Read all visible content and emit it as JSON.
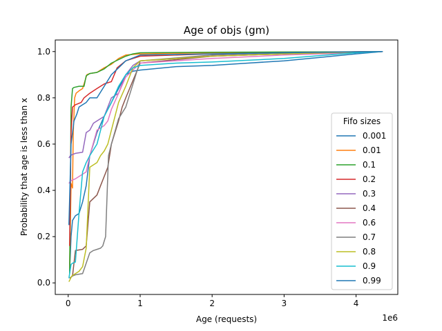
{
  "chart_data": {
    "type": "line",
    "title": "Age of objs (gm)",
    "xlabel": "Age (requests)",
    "ylabel": "Probability that age is less than x",
    "x_offset_label": "1e6",
    "xlim": [
      -180000,
      4580000
    ],
    "ylim": [
      -0.05,
      1.05
    ],
    "x_ticks": [
      0,
      1000000,
      2000000,
      3000000,
      4000000
    ],
    "x_tick_labels": [
      "0",
      "1",
      "2",
      "3",
      "4"
    ],
    "y_ticks": [
      0.0,
      0.2,
      0.4,
      0.6,
      0.8,
      1.0
    ],
    "y_tick_labels": [
      "0.0",
      "0.2",
      "0.4",
      "0.6",
      "0.8",
      "1.0"
    ],
    "grid": false,
    "legend": {
      "title": "Fifo sizes",
      "placement": "lower-right"
    },
    "series": [
      {
        "name": "0.001",
        "color": "#1f77b4",
        "x": [
          20000,
          40000,
          60000,
          100000,
          150000,
          200000,
          250000,
          300000,
          400000,
          500000,
          550000,
          600000,
          700000,
          800000,
          900000,
          1000000,
          1500000,
          2000000,
          2500000,
          3000000,
          3500000,
          4000000,
          4370000
        ],
        "y": [
          0.05,
          0.2,
          0.27,
          0.29,
          0.3,
          0.35,
          0.42,
          0.55,
          0.65,
          0.72,
          0.75,
          0.78,
          0.84,
          0.9,
          0.915,
          0.92,
          0.935,
          0.94,
          0.95,
          0.96,
          0.975,
          0.99,
          1.0
        ]
      },
      {
        "name": "0.01",
        "color": "#ff7f0e",
        "x": [
          20000,
          40000,
          60000,
          70000,
          90000,
          110000,
          150000,
          200000,
          260000,
          300000,
          400000,
          500000,
          600000,
          700000,
          800000,
          1000000,
          2000000,
          3000000,
          4000000,
          4370000
        ],
        "y": [
          0.06,
          0.43,
          0.41,
          0.65,
          0.8,
          0.82,
          0.83,
          0.84,
          0.9,
          0.905,
          0.91,
          0.93,
          0.945,
          0.97,
          0.985,
          0.99,
          0.995,
          0.997,
          0.999,
          1.0
        ]
      },
      {
        "name": "0.1",
        "color": "#2ca02c",
        "x": [
          20000,
          40000,
          60000,
          80000,
          150000,
          220000,
          250000,
          300000,
          400000,
          500000,
          600000,
          700000,
          800000,
          900000,
          1000000,
          2000000,
          3000000,
          4000000,
          4370000
        ],
        "y": [
          0.04,
          0.76,
          0.84,
          0.845,
          0.85,
          0.85,
          0.895,
          0.905,
          0.91,
          0.925,
          0.95,
          0.965,
          0.98,
          0.99,
          0.995,
          0.997,
          0.998,
          0.999,
          1.0
        ]
      },
      {
        "name": "0.2",
        "color": "#d62728",
        "x": [
          20000,
          40000,
          60000,
          100000,
          180000,
          220000,
          300000,
          400000,
          500000,
          600000,
          680000,
          800000,
          900000,
          1000000,
          2000000,
          3000000,
          4000000,
          4370000
        ],
        "y": [
          0.16,
          0.65,
          0.76,
          0.77,
          0.78,
          0.8,
          0.82,
          0.84,
          0.86,
          0.87,
          0.93,
          0.96,
          0.97,
          0.98,
          0.99,
          0.995,
          0.999,
          1.0
        ]
      },
      {
        "name": "0.3",
        "color": "#9467bd",
        "x": [
          10000,
          30000,
          60000,
          100000,
          200000,
          250000,
          300000,
          350000,
          400000,
          500000,
          550000,
          600000,
          700000,
          800000,
          900000,
          1000000,
          2000000,
          3000000,
          4000000,
          4370000
        ],
        "y": [
          0.54,
          0.55,
          0.555,
          0.56,
          0.565,
          0.65,
          0.66,
          0.69,
          0.7,
          0.72,
          0.76,
          0.8,
          0.82,
          0.9,
          0.94,
          0.96,
          0.98,
          0.99,
          0.998,
          1.0
        ]
      },
      {
        "name": "0.4",
        "color": "#8c564b",
        "x": [
          20000,
          60000,
          100000,
          200000,
          250000,
          300000,
          400000,
          450000,
          500000,
          550000,
          600000,
          700000,
          750000,
          800000,
          1000000,
          2000000,
          3000000,
          4000000,
          4370000
        ],
        "y": [
          0.02,
          0.03,
          0.14,
          0.145,
          0.16,
          0.35,
          0.38,
          0.42,
          0.46,
          0.5,
          0.6,
          0.7,
          0.76,
          0.8,
          0.95,
          0.98,
          0.99,
          0.998,
          1.0
        ]
      },
      {
        "name": "0.6",
        "color": "#e377c2",
        "x": [
          10000,
          30000,
          60000,
          100000,
          200000,
          250000,
          300000,
          400000,
          500000,
          550000,
          600000,
          700000,
          800000,
          900000,
          1000000,
          2000000,
          3000000,
          4000000,
          4370000
        ],
        "y": [
          0.43,
          0.44,
          0.445,
          0.45,
          0.47,
          0.48,
          0.55,
          0.66,
          0.68,
          0.7,
          0.75,
          0.82,
          0.89,
          0.92,
          0.95,
          0.97,
          0.985,
          0.995,
          1.0
        ]
      },
      {
        "name": "0.7",
        "color": "#7f7f7f",
        "x": [
          20000,
          60000,
          100000,
          200000,
          300000,
          350000,
          400000,
          450000,
          480000,
          520000,
          560000,
          600000,
          700000,
          800000,
          1000000,
          2000000,
          3000000,
          4000000,
          4370000
        ],
        "y": [
          0.02,
          0.03,
          0.035,
          0.04,
          0.13,
          0.14,
          0.145,
          0.15,
          0.16,
          0.2,
          0.55,
          0.6,
          0.71,
          0.76,
          0.96,
          0.985,
          0.995,
          0.999,
          1.0
        ]
      },
      {
        "name": "0.8",
        "color": "#bcbd22",
        "x": [
          10000,
          50000,
          100000,
          150000,
          200000,
          250000,
          300000,
          400000,
          450000,
          500000,
          550000,
          600000,
          700000,
          800000,
          900000,
          1000000,
          2000000,
          3000000,
          4000000,
          4370000
        ],
        "y": [
          0.005,
          0.03,
          0.04,
          0.05,
          0.07,
          0.15,
          0.5,
          0.52,
          0.55,
          0.57,
          0.6,
          0.66,
          0.78,
          0.85,
          0.93,
          0.96,
          0.98,
          0.99,
          0.998,
          1.0
        ]
      },
      {
        "name": "0.9",
        "color": "#17becf",
        "x": [
          10000,
          40000,
          60000,
          100000,
          150000,
          200000,
          250000,
          300000,
          400000,
          500000,
          600000,
          700000,
          800000,
          900000,
          1000000,
          1500000,
          2000000,
          3000000,
          4000000,
          4370000
        ],
        "y": [
          0.02,
          0.08,
          0.085,
          0.09,
          0.3,
          0.48,
          0.52,
          0.55,
          0.6,
          0.72,
          0.78,
          0.85,
          0.9,
          0.93,
          0.94,
          0.95,
          0.955,
          0.97,
          0.995,
          1.0
        ]
      },
      {
        "name": "0.99",
        "color": "#1f77b4",
        "x": [
          10000,
          40000,
          80000,
          120000,
          150000,
          200000,
          250000,
          300000,
          400000,
          500000,
          600000,
          700000,
          800000,
          1000000,
          2000000,
          3000000,
          4000000,
          4370000
        ],
        "y": [
          0.25,
          0.6,
          0.7,
          0.73,
          0.76,
          0.77,
          0.78,
          0.8,
          0.8,
          0.85,
          0.9,
          0.93,
          0.96,
          0.985,
          0.99,
          0.995,
          0.999,
          1.0
        ]
      }
    ]
  }
}
